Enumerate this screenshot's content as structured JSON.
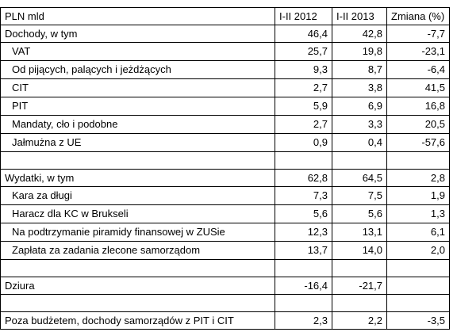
{
  "table": {
    "columns": [
      "PLN mld",
      "I-II 2012",
      "I-II 2013",
      "Zmiana (%)"
    ],
    "rows": [
      {
        "label": "Dochody, w tym",
        "v2012": "46,4",
        "v2013": "42,8",
        "change": "-7,7",
        "indent": false
      },
      {
        "label": "VAT",
        "v2012": "25,7",
        "v2013": "19,8",
        "change": "-23,1",
        "indent": true
      },
      {
        "label": "Od pijących, palących i jeżdżących",
        "v2012": "9,3",
        "v2013": "8,7",
        "change": "-6,4",
        "indent": true
      },
      {
        "label": "CIT",
        "v2012": "2,7",
        "v2013": "3,8",
        "change": "41,5",
        "indent": true
      },
      {
        "label": "PIT",
        "v2012": "5,9",
        "v2013": "6,9",
        "change": "16,8",
        "indent": true
      },
      {
        "label": "Mandaty, cło i podobne",
        "v2012": "2,7",
        "v2013": "3,3",
        "change": "20,5",
        "indent": true
      },
      {
        "label": "Jałmużna z UE",
        "v2012": "0,9",
        "v2013": "0,4",
        "change": "-57,6",
        "indent": true
      },
      {
        "label": "",
        "v2012": "",
        "v2013": "",
        "change": "",
        "indent": false,
        "blank": true
      },
      {
        "label": "Wydatki, w tym",
        "v2012": "62,8",
        "v2013": "64,5",
        "change": "2,8",
        "indent": false
      },
      {
        "label": "Kara za długi",
        "v2012": "7,3",
        "v2013": "7,5",
        "change": "1,9",
        "indent": true
      },
      {
        "label": "Haracz dla KC w Brukseli",
        "v2012": "5,6",
        "v2013": "5,6",
        "change": "1,3",
        "indent": true
      },
      {
        "label": "Na podtrzymanie piramidy finansowej w ZUSie",
        "v2012": "12,3",
        "v2013": "13,1",
        "change": "6,1",
        "indent": true
      },
      {
        "label": "Zapłata za zadania zlecone samorządom",
        "v2012": "13,7",
        "v2013": "14,0",
        "change": "2,0",
        "indent": true
      },
      {
        "label": "",
        "v2012": "",
        "v2013": "",
        "change": "",
        "indent": false,
        "blank": true
      },
      {
        "label": "Dziura",
        "v2012": "-16,4",
        "v2013": "-21,7",
        "change": "",
        "indent": false
      },
      {
        "label": "",
        "v2012": "",
        "v2013": "",
        "change": "",
        "indent": false,
        "blank": true
      },
      {
        "label": "Poza budżetem, dochody samorządów z PIT i CIT",
        "v2012": "2,3",
        "v2013": "2,2",
        "change": "-3,5",
        "indent": false
      }
    ]
  }
}
